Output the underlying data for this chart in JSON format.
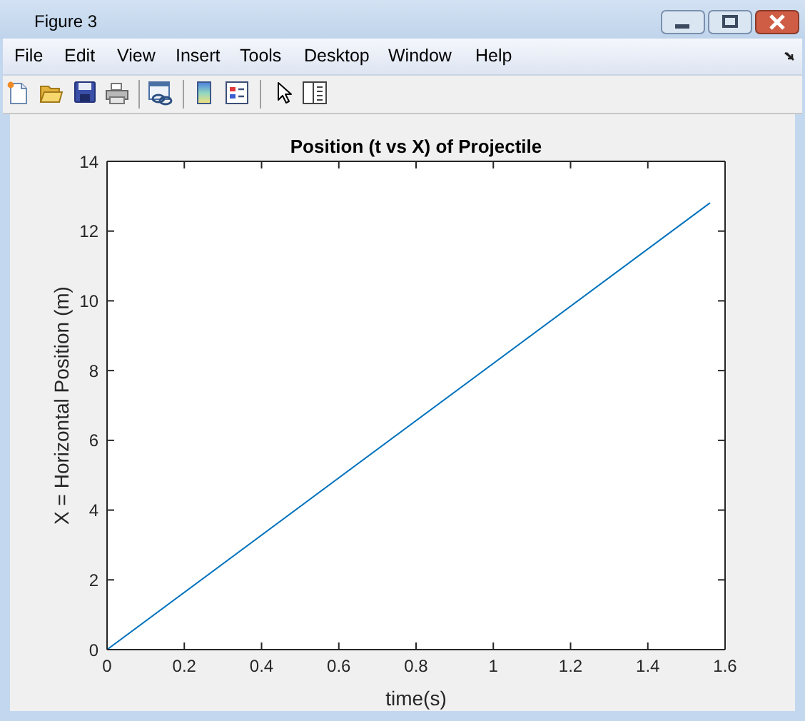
{
  "chart_data": {
    "type": "line",
    "title": "Position (t vs X) of Projectile",
    "xlabel": "time(s)",
    "ylabel": "X = Horizontal Position (m)",
    "annotations": [
      "Figure 3",
      "File",
      "Edit",
      "View",
      "Insert",
      "Tools",
      "Desktop",
      "Window",
      "Help"
    ],
    "x": [
      0,
      1.56
    ],
    "values": [
      0,
      12.8
    ],
    "color": "#0072bd",
    "line_style": "solid",
    "xlim": [
      0,
      1.6
    ],
    "xticks": [
      0,
      0.2,
      0.4,
      0.6,
      0.8,
      1,
      1.2,
      1.4,
      1.6
    ],
    "ylim": [
      0,
      14
    ],
    "yticks": [
      0,
      2,
      4,
      6,
      8,
      10,
      12,
      14
    ]
  }
}
